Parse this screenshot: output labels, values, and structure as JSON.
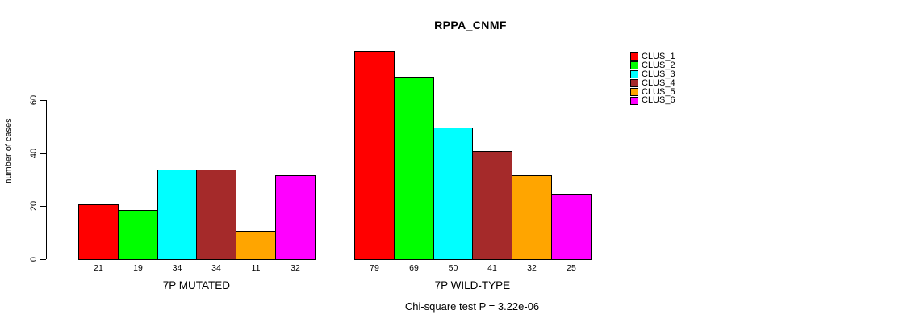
{
  "title": "RPPA_CNMF",
  "y_axis": {
    "label": "number of cases"
  },
  "annotation": "Chi-square test P = 3.22e-06",
  "chart_data": {
    "type": "bar",
    "title": "RPPA_CNMF",
    "xlabel": "",
    "ylabel": "number of cases",
    "yticks": [
      0,
      20,
      40,
      60
    ],
    "ylim": [
      0,
      80
    ],
    "grid": false,
    "legend_position": "right",
    "bar_value_labels": true,
    "categories": [
      "7P MUTATED",
      "7P WILD-TYPE"
    ],
    "series": [
      {
        "name": "CLUS_1",
        "color": "#FF0000",
        "values": [
          21,
          79
        ]
      },
      {
        "name": "CLUS_2",
        "color": "#00FF00",
        "values": [
          19,
          69
        ]
      },
      {
        "name": "CLUS_3",
        "color": "#00FFFF",
        "values": [
          34,
          50
        ]
      },
      {
        "name": "CLUS_4",
        "color": "#A52A2A",
        "values": [
          34,
          41
        ]
      },
      {
        "name": "CLUS_5",
        "color": "#FFA500",
        "values": [
          11,
          32
        ]
      },
      {
        "name": "CLUS_6",
        "color": "#FF00FF",
        "values": [
          32,
          25
        ]
      }
    ],
    "annotation": "Chi-square test P = 3.22e-06"
  }
}
